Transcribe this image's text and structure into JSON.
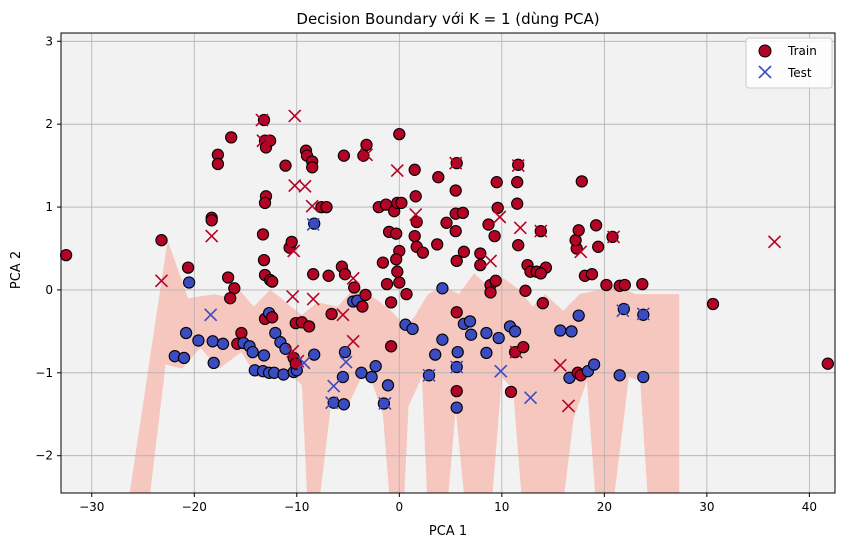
{
  "chart_data": {
    "type": "scatter",
    "title": "Decision Boundary với K = 1 (dùng PCA)",
    "xlabel": "PCA 1",
    "ylabel": "PCA 2",
    "xlim": [
      -33,
      42.5
    ],
    "ylim": [
      -2.45,
      3.1
    ],
    "xticks": [
      -30,
      -20,
      -10,
      0,
      10,
      20,
      30,
      40
    ],
    "yticks": [
      -2,
      -1,
      0,
      1,
      2,
      3
    ],
    "grid": true,
    "legend_position": "top-right",
    "colors": {
      "class_red": "#b40426",
      "class_blue": "#3b4cc0",
      "background_region": "#f2f2f2",
      "red_region": "#f6c7bf",
      "grid": "#b0b0b0"
    },
    "series": [
      {
        "name": "Train",
        "marker": "circle",
        "points": [
          [
            -32.5,
            0.42,
            "r"
          ],
          [
            -23.2,
            0.6,
            "r"
          ],
          [
            -20.6,
            0.27,
            "r"
          ],
          [
            -20.5,
            0.09,
            "b"
          ],
          [
            -20.8,
            -0.52,
            "b"
          ],
          [
            -18.3,
            0.87,
            "r"
          ],
          [
            -18.3,
            0.84,
            "r"
          ],
          [
            -18.2,
            -0.62,
            "b"
          ],
          [
            -18.1,
            -0.88,
            "b"
          ],
          [
            -17.7,
            1.63,
            "r"
          ],
          [
            -17.7,
            1.52,
            "r"
          ],
          [
            -19.6,
            -0.61,
            "b"
          ],
          [
            -21.9,
            -0.8,
            "b"
          ],
          [
            -21.0,
            -0.82,
            "b"
          ],
          [
            -17.2,
            -0.65,
            "b"
          ],
          [
            -16.4,
            1.84,
            "r"
          ],
          [
            -16.7,
            0.15,
            "r"
          ],
          [
            -16.1,
            0.02,
            "r"
          ],
          [
            -16.5,
            -0.1,
            "r"
          ],
          [
            -15.8,
            -0.65,
            "r"
          ],
          [
            -15.4,
            -0.52,
            "r"
          ],
          [
            -15.2,
            -0.64,
            "b"
          ],
          [
            -14.6,
            -0.68,
            "b"
          ],
          [
            -14.3,
            -0.75,
            "b"
          ],
          [
            -14.1,
            -0.97,
            "b"
          ],
          [
            -13.3,
            -0.98,
            "b"
          ],
          [
            -12.7,
            -1.0,
            "b"
          ],
          [
            -12.2,
            -1.0,
            "b"
          ],
          [
            -11.3,
            -1.02,
            "b"
          ],
          [
            -10.3,
            -0.99,
            "b"
          ],
          [
            -10.0,
            -0.97,
            "b"
          ],
          [
            -13.2,
            2.05,
            "r"
          ],
          [
            -13.1,
            1.8,
            "r"
          ],
          [
            -13.0,
            1.72,
            "r"
          ],
          [
            -12.6,
            1.8,
            "r"
          ],
          [
            -13.0,
            1.13,
            "r"
          ],
          [
            -13.1,
            1.05,
            "r"
          ],
          [
            -13.3,
            0.67,
            "r"
          ],
          [
            -13.2,
            0.36,
            "r"
          ],
          [
            -13.1,
            0.18,
            "r"
          ],
          [
            -12.6,
            0.12,
            "r"
          ],
          [
            -13.1,
            -0.35,
            "r"
          ],
          [
            -12.7,
            -0.28,
            "b"
          ],
          [
            -12.4,
            -0.33,
            "r"
          ],
          [
            -13.2,
            -0.79,
            "b"
          ],
          [
            -12.1,
            -0.52,
            "b"
          ],
          [
            -11.6,
            -0.63,
            "b"
          ],
          [
            -11.1,
            -0.71,
            "b"
          ],
          [
            -10.3,
            -0.82,
            "r"
          ],
          [
            -10.1,
            -0.89,
            "r"
          ],
          [
            -11.1,
            1.5,
            "r"
          ],
          [
            -10.7,
            0.51,
            "r"
          ],
          [
            -10.1,
            -0.4,
            "r"
          ],
          [
            -9.5,
            -0.39,
            "r"
          ],
          [
            -9.1,
            1.68,
            "r"
          ],
          [
            -9.0,
            1.62,
            "r"
          ],
          [
            -8.5,
            1.55,
            "r"
          ],
          [
            -8.5,
            1.48,
            "r"
          ],
          [
            -8.3,
            0.8,
            "b"
          ],
          [
            -8.3,
            -0.78,
            "b"
          ],
          [
            -8.8,
            -0.44,
            "r"
          ],
          [
            -8.4,
            0.19,
            "r"
          ],
          [
            -7.6,
            1.0,
            "r"
          ],
          [
            -7.1,
            1.0,
            "r"
          ],
          [
            -6.9,
            0.17,
            "r"
          ],
          [
            -6.6,
            -0.29,
            "r"
          ],
          [
            -6.4,
            -1.36,
            "b"
          ],
          [
            -5.4,
            -1.38,
            "b"
          ],
          [
            -5.5,
            -1.05,
            "b"
          ],
          [
            -5.3,
            -0.75,
            "b"
          ],
          [
            -4.5,
            -0.14,
            "b"
          ],
          [
            -4.1,
            -0.13,
            "b"
          ],
          [
            -3.7,
            -1.0,
            "b"
          ],
          [
            -3.6,
            -0.2,
            "r"
          ],
          [
            -3.2,
            1.75,
            "r"
          ],
          [
            -3.5,
            1.62,
            "r"
          ],
          [
            -5.4,
            1.62,
            "r"
          ],
          [
            -5.6,
            0.28,
            "r"
          ],
          [
            -5.3,
            0.19,
            "r"
          ],
          [
            -4.4,
            0.03,
            "r"
          ],
          [
            -2.7,
            -1.05,
            "b"
          ],
          [
            -2.3,
            -0.92,
            "b"
          ],
          [
            -2.0,
            1.0,
            "r"
          ],
          [
            -1.3,
            1.03,
            "r"
          ],
          [
            -1.0,
            0.7,
            "r"
          ],
          [
            -1.6,
            0.33,
            "r"
          ],
          [
            -1.2,
            0.07,
            "r"
          ],
          [
            -0.8,
            -0.15,
            "r"
          ],
          [
            -0.8,
            -0.68,
            "r"
          ],
          [
            -1.1,
            -1.15,
            "b"
          ],
          [
            -1.5,
            -1.37,
            "b"
          ],
          [
            -0.5,
            0.95,
            "r"
          ],
          [
            -0.3,
            0.68,
            "r"
          ],
          [
            0.0,
            0.47,
            "r"
          ],
          [
            -0.3,
            0.37,
            "r"
          ],
          [
            -0.2,
            0.22,
            "r"
          ],
          [
            0.0,
            0.09,
            "r"
          ],
          [
            -0.2,
            1.05,
            "r"
          ],
          [
            0.2,
            1.05,
            "r"
          ],
          [
            0.0,
            1.88,
            "r"
          ],
          [
            0.7,
            -0.05,
            "r"
          ],
          [
            0.6,
            -0.42,
            "b"
          ],
          [
            1.5,
            1.45,
            "r"
          ],
          [
            1.6,
            1.13,
            "r"
          ],
          [
            1.7,
            0.82,
            "r"
          ],
          [
            1.5,
            0.65,
            "r"
          ],
          [
            1.7,
            0.52,
            "r"
          ],
          [
            1.3,
            -0.47,
            "b"
          ],
          [
            2.3,
            0.45,
            "r"
          ],
          [
            2.9,
            -1.03,
            "b"
          ],
          [
            3.8,
            1.36,
            "r"
          ],
          [
            3.7,
            0.55,
            "r"
          ],
          [
            3.5,
            -0.78,
            "b"
          ],
          [
            4.6,
            0.81,
            "r"
          ],
          [
            4.2,
            -0.6,
            "b"
          ],
          [
            5.6,
            1.53,
            "r"
          ],
          [
            5.5,
            1.2,
            "r"
          ],
          [
            5.5,
            0.92,
            "r"
          ],
          [
            5.5,
            0.71,
            "r"
          ],
          [
            5.6,
            0.35,
            "r"
          ],
          [
            5.6,
            -0.27,
            "r"
          ],
          [
            5.7,
            -0.75,
            "b"
          ],
          [
            5.6,
            -0.93,
            "b"
          ],
          [
            5.6,
            -1.22,
            "r"
          ],
          [
            5.6,
            -1.42,
            "b"
          ],
          [
            6.2,
            0.93,
            "r"
          ],
          [
            6.3,
            0.46,
            "r"
          ],
          [
            4.2,
            0.02,
            "b"
          ],
          [
            6.3,
            -0.41,
            "b"
          ],
          [
            6.9,
            -0.38,
            "b"
          ],
          [
            7.0,
            -0.54,
            "b"
          ],
          [
            7.9,
            0.44,
            "r"
          ],
          [
            7.9,
            0.3,
            "r"
          ],
          [
            8.9,
            0.06,
            "r"
          ],
          [
            8.9,
            -0.03,
            "r"
          ],
          [
            8.5,
            -0.52,
            "b"
          ],
          [
            8.5,
            -0.76,
            "b"
          ],
          [
            9.5,
            1.3,
            "r"
          ],
          [
            9.3,
            0.65,
            "r"
          ],
          [
            9.4,
            0.11,
            "r"
          ],
          [
            9.7,
            -0.58,
            "b"
          ],
          [
            10.8,
            -0.44,
            "b"
          ],
          [
            11.3,
            -0.5,
            "b"
          ],
          [
            11.3,
            -0.75,
            "r"
          ],
          [
            12.1,
            -0.69,
            "r"
          ],
          [
            10.9,
            -1.23,
            "r"
          ],
          [
            11.6,
            1.51,
            "r"
          ],
          [
            11.5,
            1.3,
            "r"
          ],
          [
            11.5,
            1.04,
            "r"
          ],
          [
            11.6,
            0.54,
            "r"
          ],
          [
            12.5,
            0.3,
            "r"
          ],
          [
            12.8,
            0.22,
            "r"
          ],
          [
            13.4,
            0.22,
            "r"
          ],
          [
            13.8,
            0.71,
            "r"
          ],
          [
            14.3,
            0.27,
            "r"
          ],
          [
            13.8,
            0.2,
            "r"
          ],
          [
            9.6,
            0.99,
            "r"
          ],
          [
            8.7,
            0.79,
            "r"
          ],
          [
            12.3,
            -0.01,
            "r"
          ],
          [
            14.0,
            -0.16,
            "r"
          ],
          [
            15.7,
            -0.49,
            "b"
          ],
          [
            16.8,
            -0.5,
            "b"
          ],
          [
            16.6,
            -1.06,
            "b"
          ],
          [
            17.3,
            0.5,
            "r"
          ],
          [
            17.2,
            0.6,
            "r"
          ],
          [
            17.5,
            0.72,
            "r"
          ],
          [
            17.8,
            1.31,
            "r"
          ],
          [
            17.5,
            -0.31,
            "b"
          ],
          [
            17.4,
            -1.0,
            "r"
          ],
          [
            17.7,
            -1.03,
            "r"
          ],
          [
            18.1,
            0.17,
            "r"
          ],
          [
            18.4,
            -0.98,
            "b"
          ],
          [
            18.8,
            0.19,
            "r"
          ],
          [
            19.2,
            0.78,
            "r"
          ],
          [
            19.4,
            0.52,
            "r"
          ],
          [
            19.0,
            -0.9,
            "b"
          ],
          [
            20.2,
            0.06,
            "r"
          ],
          [
            20.8,
            0.64,
            "r"
          ],
          [
            21.5,
            0.05,
            "r"
          ],
          [
            21.5,
            -1.03,
            "b"
          ],
          [
            22.0,
            0.06,
            "r"
          ],
          [
            21.9,
            -0.23,
            "b"
          ],
          [
            23.7,
            0.07,
            "r"
          ],
          [
            23.8,
            -0.3,
            "b"
          ],
          [
            23.8,
            -1.05,
            "b"
          ],
          [
            30.6,
            -0.17,
            "r"
          ],
          [
            41.8,
            -0.89,
            "r"
          ],
          [
            -10.5,
            0.58,
            "r"
          ],
          [
            -12.4,
            0.1,
            "r"
          ],
          [
            -3.3,
            -0.06,
            "r"
          ]
        ]
      },
      {
        "name": "Test",
        "marker": "x",
        "points": [
          [
            -23.2,
            0.11,
            "r"
          ],
          [
            -18.3,
            0.65,
            "r"
          ],
          [
            -18.4,
            -0.3,
            "b"
          ],
          [
            -13.4,
            2.05,
            "r"
          ],
          [
            -13.3,
            1.8,
            "r"
          ],
          [
            -10.2,
            2.1,
            "r"
          ],
          [
            -10.2,
            1.26,
            "r"
          ],
          [
            -9.2,
            1.25,
            "r"
          ],
          [
            -10.3,
            0.47,
            "r"
          ],
          [
            -10.4,
            -0.08,
            "r"
          ],
          [
            -8.5,
            1.01,
            "r"
          ],
          [
            -8.4,
            0.79,
            "b"
          ],
          [
            -8.4,
            -0.11,
            "r"
          ],
          [
            -10.4,
            -0.74,
            "r"
          ],
          [
            -9.9,
            -0.86,
            "r"
          ],
          [
            -9.3,
            -0.88,
            "b"
          ],
          [
            -6.4,
            -1.16,
            "b"
          ],
          [
            -6.6,
            -1.36,
            "b"
          ],
          [
            -5.5,
            -0.3,
            "r"
          ],
          [
            -5.2,
            -0.87,
            "b"
          ],
          [
            -4.5,
            0.14,
            "r"
          ],
          [
            -4.5,
            -0.62,
            "r"
          ],
          [
            -3.2,
            1.63,
            "r"
          ],
          [
            -1.4,
            -1.37,
            "b"
          ],
          [
            -0.2,
            1.44,
            "r"
          ],
          [
            1.6,
            0.91,
            "r"
          ],
          [
            2.9,
            -1.03,
            "b"
          ],
          [
            5.6,
            -0.93,
            "b"
          ],
          [
            5.5,
            1.53,
            "r"
          ],
          [
            8.9,
            0.35,
            "r"
          ],
          [
            9.8,
            0.88,
            "r"
          ],
          [
            9.9,
            -0.98,
            "b"
          ],
          [
            12.8,
            -1.3,
            "b"
          ],
          [
            11.8,
            0.75,
            "r"
          ],
          [
            13.8,
            0.71,
            "r"
          ],
          [
            11.6,
            1.5,
            "r"
          ],
          [
            11.4,
            -0.75,
            "r"
          ],
          [
            15.7,
            -0.91,
            "r"
          ],
          [
            16.5,
            -1.4,
            "r"
          ],
          [
            17.7,
            0.46,
            "r"
          ],
          [
            21.8,
            -0.25,
            "b"
          ],
          [
            23.8,
            -0.29,
            "b"
          ],
          [
            20.9,
            0.64,
            "r"
          ],
          [
            36.6,
            0.58,
            "r"
          ]
        ]
      }
    ],
    "legend": [
      "Train",
      "Test"
    ]
  }
}
